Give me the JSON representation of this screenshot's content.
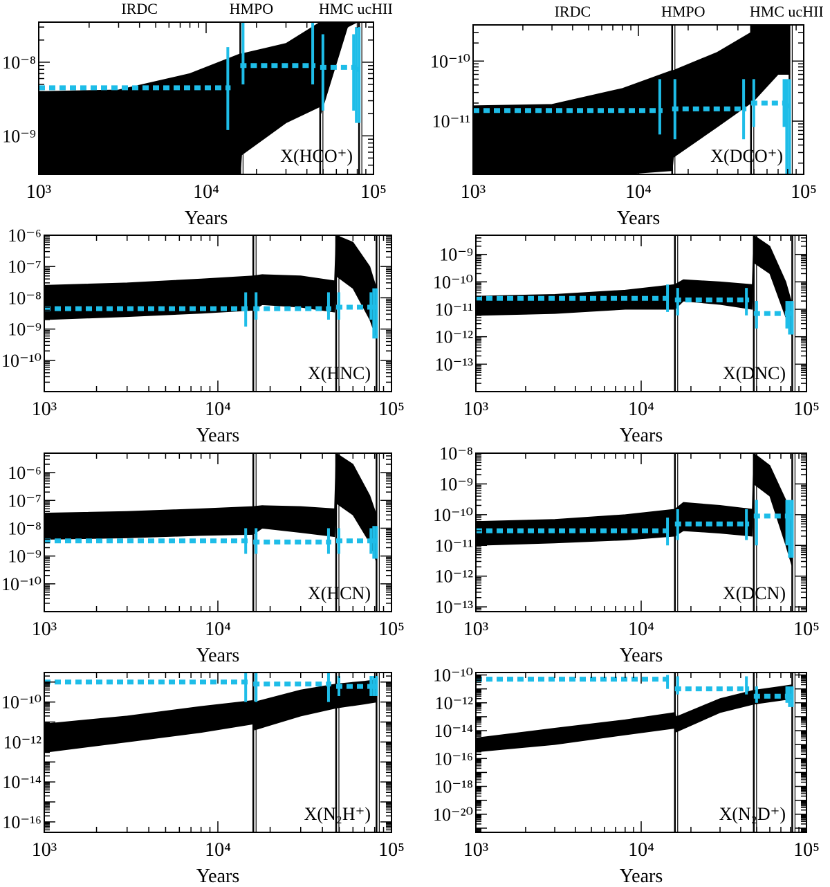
{
  "figure": {
    "x_axis_label": "Years",
    "stage_labels": [
      "IRDC",
      "HMPO",
      "HMC ucHII"
    ],
    "colors": {
      "model_band": "#000000",
      "observed": "#1ebde8",
      "axes": "#000000"
    }
  },
  "chart_data": [
    {
      "type": "area",
      "species_label": "X(HCO⁺)",
      "xlabel": "Years",
      "ylabel": "",
      "x_scale": "log",
      "y_scale": "log",
      "xlim": [
        1000,
        100000
      ],
      "ylim": [
        3e-10,
        3.5e-08
      ],
      "x_ticks": [
        1000,
        10000,
        100000
      ],
      "y_ticks": [
        1e-09,
        1e-08
      ],
      "stage_lines": [
        16000,
        48000,
        82000
      ],
      "model_band": {
        "x": [
          1000,
          3000,
          8000,
          16000,
          16300,
          30000,
          48000,
          48500,
          70000,
          80000,
          82000
        ],
        "lower": [
          3e-10,
          3e-10,
          3e-10,
          3e-10,
          5.5e-10,
          1.5e-09,
          2.5e-09,
          2e-09,
          3e-08,
          3.5e-08,
          3.5e-08
        ],
        "upper": [
          4e-09,
          4.2e-09,
          7e-09,
          1.3e-08,
          1.3e-08,
          1.8e-08,
          3.5e-08,
          3.5e-08,
          3.5e-08,
          3.5e-08,
          3.5e-08
        ]
      },
      "observed": [
        {
          "stage": "IRDC",
          "x_range": [
            1000,
            14000
          ],
          "value": 4.5e-09,
          "error": [
            1.2e-09,
            1.6e-08
          ]
        },
        {
          "stage": "HMPO",
          "x_range": [
            16000,
            45000
          ],
          "value": 9e-09,
          "error": [
            5e-09,
            3.5e-08
          ]
        },
        {
          "stage": "HMC",
          "x_range": [
            48000,
            79000
          ],
          "value": 8.5e-09,
          "error": [
            2.2e-09,
            2.4e-08
          ]
        },
        {
          "stage": "ucHII",
          "x_range": [
            79000,
            82000
          ],
          "value": 8e-09,
          "error": [
            1.5e-09,
            3e-08
          ]
        }
      ]
    },
    {
      "type": "area",
      "species_label": "X(DCO⁺)",
      "xlabel": "Years",
      "ylabel": "",
      "x_scale": "log",
      "y_scale": "log",
      "xlim": [
        1000,
        100000
      ],
      "ylim": [
        1.3e-12,
        4e-10
      ],
      "x_ticks": [
        1000,
        10000,
        100000
      ],
      "y_ticks": [
        1e-11,
        1e-10
      ],
      "stage_lines": [
        16000,
        48000,
        82000
      ],
      "model_band": {
        "x": [
          1000,
          3000,
          8000,
          16000,
          16300,
          30000,
          48000,
          48500,
          70000,
          80000,
          82000
        ],
        "lower": [
          1.3e-12,
          1.3e-12,
          1.3e-12,
          1.5e-12,
          2.5e-12,
          8e-12,
          2e-11,
          2e-11,
          6e-11,
          6e-11,
          6e-11
        ],
        "upper": [
          1.8e-11,
          1.9e-11,
          3.5e-11,
          7e-11,
          7e-11,
          1.4e-10,
          3e-10,
          4e-10,
          4e-10,
          4e-10,
          4e-10
        ]
      },
      "observed": [
        {
          "stage": "IRDC",
          "x_range": [
            1000,
            14000
          ],
          "value": 1.5e-11,
          "error": [
            6e-12,
            5e-11
          ]
        },
        {
          "stage": "HMPO",
          "x_range": [
            16000,
            45000
          ],
          "value": 1.6e-11,
          "error": [
            5e-12,
            5e-11
          ]
        },
        {
          "stage": "HMC",
          "x_range": [
            48000,
            79000
          ],
          "value": 2e-11,
          "error": [
            8e-12,
            5e-11
          ]
        },
        {
          "stage": "ucHII",
          "x_range": [
            79000,
            82000
          ],
          "value": 1.8e-11,
          "error": [
            1.3e-12,
            5e-11
          ]
        }
      ]
    },
    {
      "type": "area",
      "species_label": "X(HNC)",
      "xlabel": "Years",
      "ylabel": "",
      "x_scale": "log",
      "y_scale": "log",
      "xlim": [
        1000,
        100000
      ],
      "ylim": [
        1e-11,
        1e-06
      ],
      "x_ticks": [
        1000,
        10000,
        100000
      ],
      "y_ticks": [
        1e-10,
        1e-09,
        1e-08,
        1e-07,
        1e-06
      ],
      "stage_lines": [
        16000,
        48000,
        82000
      ],
      "model_band": {
        "x": [
          1000,
          3000,
          8000,
          16000,
          18000,
          30000,
          47000,
          48000,
          60000,
          75000,
          82000
        ],
        "lower": [
          2e-09,
          2.5e-09,
          3.2e-09,
          4e-09,
          6e-09,
          5e-09,
          3.5e-09,
          5e-08,
          2e-08,
          2e-09,
          5e-10
        ],
        "upper": [
          2.5e-08,
          3e-08,
          4e-08,
          5e-08,
          5.5e-08,
          5e-08,
          3.5e-08,
          1e-06,
          6e-07,
          1e-07,
          2e-08
        ]
      },
      "observed": [
        {
          "stage": "IRDC",
          "x_range": [
            1000,
            15000
          ],
          "value": 4.5e-09,
          "error": [
            1.2e-09,
            1.5e-08
          ]
        },
        {
          "stage": "HMPO",
          "x_range": [
            16000,
            45000
          ],
          "value": 4.5e-09,
          "error": [
            2e-09,
            1.5e-08
          ]
        },
        {
          "stage": "HMC",
          "x_range": [
            48000,
            79000
          ],
          "value": 5e-09,
          "error": [
            2e-09,
            1.5e-08
          ]
        },
        {
          "stage": "ucHII",
          "x_range": [
            79000,
            82000
          ],
          "value": 5e-09,
          "error": [
            5e-10,
            2e-08
          ]
        }
      ]
    },
    {
      "type": "area",
      "species_label": "X(DNC)",
      "xlabel": "Years",
      "ylabel": "",
      "x_scale": "log",
      "y_scale": "log",
      "xlim": [
        1000,
        100000
      ],
      "ylim": [
        1e-14,
        5e-09
      ],
      "x_ticks": [
        1000,
        10000,
        100000
      ],
      "y_ticks": [
        1e-13,
        1e-12,
        1e-11,
        1e-10,
        1e-09
      ],
      "stage_lines": [
        16000,
        48000,
        82000
      ],
      "model_band": {
        "x": [
          1000,
          3000,
          8000,
          16000,
          18000,
          30000,
          47000,
          48000,
          60000,
          75000,
          82000
        ],
        "lower": [
          6e-12,
          7e-12,
          1e-11,
          1e-11,
          2e-11,
          1.5e-11,
          1e-11,
          5e-10,
          2e-10,
          5e-12,
          1e-12
        ],
        "upper": [
          3e-11,
          3.5e-11,
          5e-11,
          8e-11,
          1.2e-10,
          1e-10,
          8e-11,
          5e-09,
          2e-09,
          1e-10,
          1.5e-11
        ]
      },
      "observed": [
        {
          "stage": "IRDC",
          "x_range": [
            1000,
            15000
          ],
          "value": 2.5e-11,
          "error": [
            8e-12,
            8e-11
          ]
        },
        {
          "stage": "HMPO",
          "x_range": [
            16000,
            45000
          ],
          "value": 2.2e-11,
          "error": [
            6e-12,
            6e-11
          ]
        },
        {
          "stage": "HMC",
          "x_range": [
            48000,
            79000
          ],
          "value": 7e-12,
          "error": [
            2e-12,
            2e-11
          ]
        },
        {
          "stage": "ucHII",
          "x_range": [
            79000,
            82000
          ],
          "value": 7e-12,
          "error": [
            1.2e-12,
            2e-11
          ]
        }
      ]
    },
    {
      "type": "area",
      "species_label": "X(HCN)",
      "xlabel": "Years",
      "ylabel": "",
      "x_scale": "log",
      "y_scale": "log",
      "xlim": [
        1000,
        100000
      ],
      "ylim": [
        1e-11,
        5e-06
      ],
      "x_ticks": [
        1000,
        10000,
        100000
      ],
      "y_ticks": [
        1e-10,
        1e-09,
        1e-08,
        1e-07,
        1e-06
      ],
      "stage_lines": [
        16000,
        48000,
        82000
      ],
      "model_band": {
        "x": [
          1000,
          3000,
          8000,
          16000,
          18000,
          30000,
          47000,
          48000,
          60000,
          75000,
          82000
        ],
        "lower": [
          4e-09,
          4.5e-09,
          5.5e-09,
          6e-09,
          1e-08,
          7e-09,
          5e-09,
          8e-08,
          3e-08,
          3e-09,
          6e-10
        ],
        "upper": [
          3.5e-08,
          4e-08,
          5e-08,
          6e-08,
          6.5e-08,
          6e-08,
          5e-08,
          5e-06,
          2e-06,
          1.5e-07,
          3e-08
        ]
      },
      "observed": [
        {
          "stage": "IRDC",
          "x_range": [
            1000,
            15000
          ],
          "value": 3.5e-09,
          "error": [
            1.2e-09,
            1e-08
          ]
        },
        {
          "stage": "HMPO",
          "x_range": [
            16000,
            45000
          ],
          "value": 3.2e-09,
          "error": [
            1.2e-09,
            1e-08
          ]
        },
        {
          "stage": "HMC",
          "x_range": [
            48000,
            79000
          ],
          "value": 3.5e-09,
          "error": [
            1.2e-09,
            1e-08
          ]
        },
        {
          "stage": "ucHII",
          "x_range": [
            79000,
            82000
          ],
          "value": 3.5e-09,
          "error": [
            8e-10,
            1.2e-08
          ]
        }
      ]
    },
    {
      "type": "area",
      "species_label": "X(DCN)",
      "xlabel": "Years",
      "ylabel": "",
      "x_scale": "log",
      "y_scale": "log",
      "xlim": [
        1000,
        100000
      ],
      "ylim": [
        7e-14,
        1e-08
      ],
      "x_ticks": [
        1000,
        10000,
        100000
      ],
      "y_ticks": [
        1e-13,
        1e-12,
        1e-11,
        1e-10,
        1e-09,
        1e-08
      ],
      "stage_lines": [
        16000,
        48000,
        82000
      ],
      "model_band": {
        "x": [
          1000,
          3000,
          8000,
          16000,
          18000,
          30000,
          47000,
          48000,
          60000,
          75000,
          82000
        ],
        "lower": [
          1e-11,
          1.2e-11,
          1.5e-11,
          2e-11,
          3e-11,
          2.5e-11,
          2e-11,
          1e-09,
          4e-10,
          1e-11,
          2e-12
        ],
        "upper": [
          6e-11,
          7e-11,
          1e-10,
          1.5e-10,
          2.5e-10,
          2e-10,
          1.5e-10,
          1e-08,
          4e-09,
          3e-10,
          4e-11
        ]
      },
      "observed": [
        {
          "stage": "IRDC",
          "x_range": [
            1000,
            15000
          ],
          "value": 3e-11,
          "error": [
            1e-11,
            8e-11
          ]
        },
        {
          "stage": "HMPO",
          "x_range": [
            16000,
            45000
          ],
          "value": 5e-11,
          "error": [
            1.5e-11,
            1.5e-10
          ]
        },
        {
          "stage": "HMC",
          "x_range": [
            48000,
            79000
          ],
          "value": 9e-11,
          "error": [
            1e-11,
            3e-10
          ]
        },
        {
          "stage": "ucHII",
          "x_range": [
            79000,
            82000
          ],
          "value": 9e-11,
          "error": [
            4e-12,
            3e-10
          ]
        }
      ]
    },
    {
      "type": "area",
      "species_label": "X(N₂H⁺)",
      "xlabel": "Years",
      "ylabel": "",
      "x_scale": "log",
      "y_scale": "log",
      "xlim": [
        1000,
        100000
      ],
      "ylim": [
        3e-17,
        3e-09
      ],
      "x_ticks": [
        1000,
        10000,
        100000
      ],
      "y_ticks": [
        1e-16,
        1e-14,
        1e-12,
        1e-10
      ],
      "stage_lines": [
        16000,
        48000,
        82000
      ],
      "model_band": {
        "x": [
          1000,
          3000,
          8000,
          16000,
          16300,
          30000,
          48000,
          70000,
          82000
        ],
        "lower": [
          3e-13,
          1e-12,
          3e-12,
          8e-12,
          4e-12,
          2e-11,
          5e-11,
          8e-11,
          1e-10
        ],
        "upper": [
          8e-12,
          2e-11,
          6e-11,
          1.2e-10,
          1e-10,
          4e-10,
          8e-10,
          1.1e-09,
          1.3e-09
        ]
      },
      "observed": [
        {
          "stage": "IRDC",
          "x_range": [
            1000,
            15000
          ],
          "value": 1e-09,
          "error": [
            1e-10,
            3e-09
          ]
        },
        {
          "stage": "HMPO",
          "x_range": [
            16000,
            45000
          ],
          "value": 8e-10,
          "error": [
            1e-10,
            3e-09
          ]
        },
        {
          "stage": "HMC",
          "x_range": [
            48000,
            79000
          ],
          "value": 6e-10,
          "error": [
            2e-10,
            2e-09
          ]
        },
        {
          "stage": "ucHII",
          "x_range": [
            79000,
            82000
          ],
          "value": 6e-10,
          "error": [
            2e-10,
            2e-09
          ]
        }
      ]
    },
    {
      "type": "area",
      "species_label": "X(N₂D⁺)",
      "xlabel": "Years",
      "ylabel": "",
      "x_scale": "log",
      "y_scale": "log",
      "xlim": [
        1000,
        100000
      ],
      "ylim": [
        5e-22,
        1.5e-10
      ],
      "x_ticks": [
        1000,
        10000,
        100000
      ],
      "y_ticks": [
        1e-20,
        1e-18,
        1e-16,
        1e-14,
        1e-12,
        1e-10
      ],
      "stage_lines": [
        16000,
        48000,
        82000
      ],
      "model_band": {
        "x": [
          1000,
          3000,
          8000,
          16000,
          16300,
          30000,
          48000,
          70000,
          82000
        ],
        "lower": [
          3e-16,
          1e-15,
          5e-15,
          1.5e-14,
          8e-15,
          2e-13,
          8e-13,
          1.5e-12,
          2e-12
        ],
        "upper": [
          3e-15,
          1.5e-14,
          6e-14,
          2e-13,
          1e-13,
          2e-12,
          8e-12,
          1.5e-11,
          2e-11
        ]
      },
      "observed": [
        {
          "stage": "IRDC",
          "x_range": [
            1000,
            15000
          ],
          "value": 5e-11,
          "error": [
            1e-11,
            1e-10
          ]
        },
        {
          "stage": "HMPO",
          "x_range": [
            16000,
            45000
          ],
          "value": 1e-11,
          "error": [
            4e-12,
            8e-11
          ]
        },
        {
          "stage": "HMC",
          "x_range": [
            48000,
            79000
          ],
          "value": 3e-12,
          "error": [
            1e-12,
            1.5e-11
          ]
        },
        {
          "stage": "ucHII",
          "x_range": [
            79000,
            82000
          ],
          "value": 3e-12,
          "error": [
            5e-13,
            1.5e-11
          ]
        }
      ]
    }
  ]
}
